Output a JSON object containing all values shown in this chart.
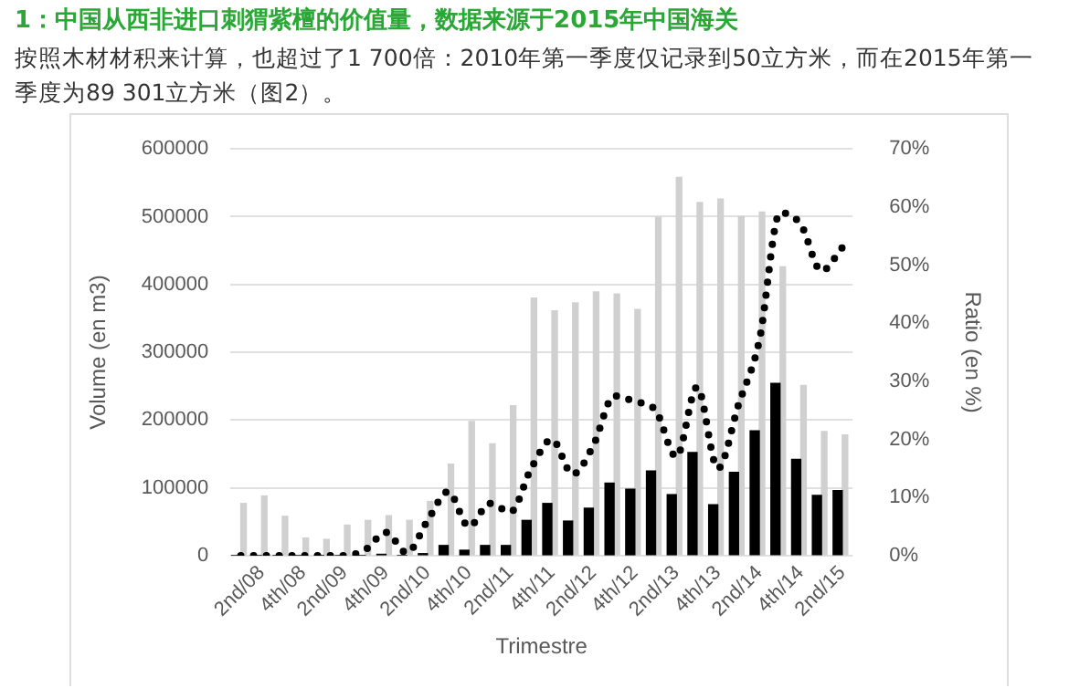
{
  "chart_data": {
    "type": "bar",
    "title": "1：中国从西非进口刺猬紫檀的价值量，数据来源于2015年中国海关",
    "subtitle": "按照木材材积来计算，也超过了1 700倍：2010年第一季度仅记录到50立方米，而在2015年第一季度为89 301立方米（图2）。",
    "xlabel": "Trimestre",
    "ylabel": "Volume (en m3)",
    "y2label": "Ratio (en %)",
    "categories": [
      null,
      "2nd/08",
      null,
      "4th/08",
      null,
      "2nd/09",
      null,
      "4th/09",
      null,
      "2nd/10",
      null,
      "4th/10",
      null,
      "2nd/11",
      null,
      "4th/11",
      null,
      "2nd/12",
      null,
      "4th/12",
      null,
      "2nd/13",
      null,
      "4th/13",
      null,
      "2nd/14",
      null,
      "4th/14",
      null,
      "2nd/15"
    ],
    "series": [
      {
        "color": "#000000",
        "values": [
          0,
          0,
          0,
          0,
          0,
          0,
          0,
          2000,
          0,
          3000,
          15000,
          8000,
          15000,
          15000,
          52000,
          77000,
          51000,
          70000,
          107000,
          98000,
          125000,
          90000,
          152000,
          75000,
          123000,
          184000,
          254000,
          142000,
          89000,
          96000
        ]
      },
      {
        "color": "#d0d0d0",
        "values": [
          77000,
          88000,
          58000,
          26000,
          24000,
          45000,
          52000,
          59000,
          52000,
          80000,
          135000,
          198000,
          165000,
          221000,
          380000,
          361000,
          373000,
          389000,
          386000,
          363000,
          499000,
          558000,
          521000,
          526000,
          500000,
          507000,
          426000,
          251000,
          183000,
          178000
        ]
      },
      {
        "type": "line",
        "axis": "y2",
        "color": "#000000",
        "line_style": "dotted",
        "marker": "none",
        "values": [
          0,
          0,
          0,
          0,
          0,
          0,
          1,
          4,
          0.5,
          6,
          11,
          5,
          9,
          7.5,
          15,
          20,
          14,
          19,
          27.5,
          26.5,
          25,
          17,
          29,
          15,
          26,
          37,
          59,
          57,
          49,
          53
        ]
      }
    ],
    "ylim": [
      0,
      600000
    ],
    "yticks": [
      0,
      100000,
      200000,
      300000,
      400000,
      500000,
      600000
    ],
    "y2lim": [
      0,
      70
    ],
    "y2ticks": [
      {
        "value": 0,
        "label": "0%"
      },
      {
        "value": 10,
        "label": "10%"
      },
      {
        "value": 20,
        "label": "20%"
      },
      {
        "value": 30,
        "label": "30%"
      },
      {
        "value": 40,
        "label": "40%"
      },
      {
        "value": 50,
        "label": "50%"
      },
      {
        "value": 60,
        "label": "60%"
      },
      {
        "value": 70,
        "label": "70%"
      }
    ],
    "grid": "y"
  }
}
